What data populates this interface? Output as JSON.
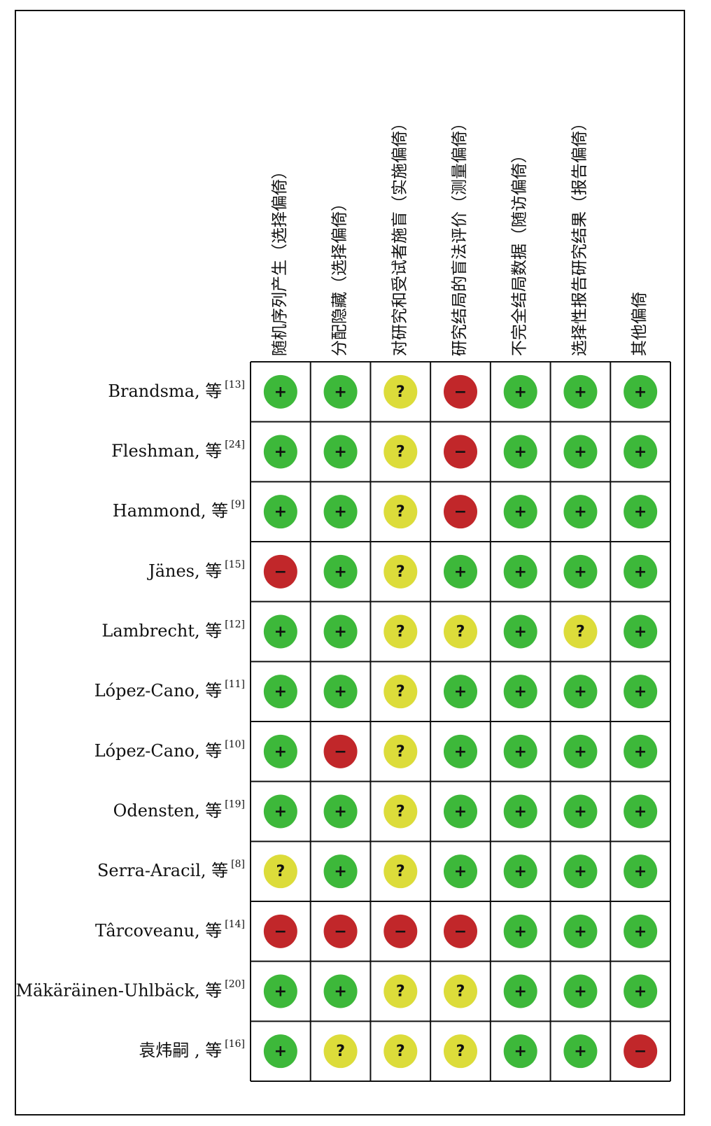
{
  "columns": [
    "随机序列产生（选择偏倚）",
    "分配隐藏（选择偏倚）",
    "对研究和受试者施盲（实施偏倚）",
    "研究结局的盲法评价（测量偏倚）",
    "不完全结局数据（随访偏倚）",
    "选择性报告研究结果（报告偏倚）",
    "其他偏倚"
  ],
  "rows": [
    {
      "label": "Brandsma, 等",
      "ref": "[13]",
      "cells": [
        "+",
        "+",
        "?",
        "−",
        "+",
        "+",
        "+"
      ]
    },
    {
      "label": "Fleshman, 等",
      "ref": "[24]",
      "cells": [
        "+",
        "+",
        "?",
        "−",
        "+",
        "+",
        "+"
      ]
    },
    {
      "label": "Hammond, 等",
      "ref": "[9]",
      "cells": [
        "+",
        "+",
        "?",
        "−",
        "+",
        "+",
        "+"
      ]
    },
    {
      "label": "Jänes, 等",
      "ref": "[15]",
      "cells": [
        "−",
        "+",
        "?",
        "+",
        "+",
        "+",
        "+"
      ]
    },
    {
      "label": "Lambrecht, 等",
      "ref": "[12]",
      "cells": [
        "+",
        "+",
        "?",
        "?",
        "+",
        "?",
        "+"
      ]
    },
    {
      "label": "López-Cano, 等",
      "ref": "[11]",
      "cells": [
        "+",
        "+",
        "?",
        "+",
        "+",
        "+",
        "+"
      ]
    },
    {
      "label": "López-Cano, 等",
      "ref": "[10]",
      "cells": [
        "+",
        "−",
        "?",
        "+",
        "+",
        "+",
        "+"
      ]
    },
    {
      "label": "Odensten, 等",
      "ref": "[19]",
      "cells": [
        "+",
        "+",
        "?",
        "+",
        "+",
        "+",
        "+"
      ]
    },
    {
      "label": "Serra-Aracil, 等",
      "ref": "[8]",
      "cells": [
        "?",
        "+",
        "?",
        "+",
        "+",
        "+",
        "+"
      ]
    },
    {
      "label": "Târcoveanu, 等",
      "ref": "[14]",
      "cells": [
        "−",
        "−",
        "−",
        "−",
        "+",
        "+",
        "+"
      ]
    },
    {
      "label": "Mäkäräinen-Uhlbäck, 等",
      "ref": "[20]",
      "cells": [
        "+",
        "+",
        "?",
        "?",
        "+",
        "+",
        "+"
      ]
    },
    {
      "label": "袁炜嗣 , 等",
      "ref": "[16]",
      "cells": [
        "+",
        "?",
        "?",
        "?",
        "+",
        "+",
        "−"
      ]
    }
  ],
  "symbol_colors": {
    "+": "#3db83a",
    "?": "#dcdc3a",
    "−": "#c1272a"
  }
}
